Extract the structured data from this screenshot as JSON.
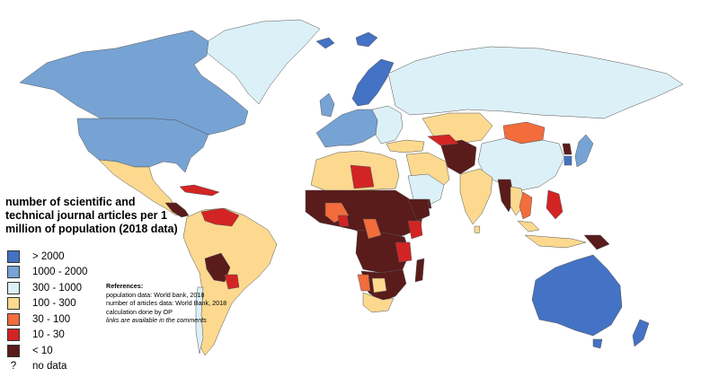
{
  "legend": {
    "title": "number of scientific and technical journal articles per 1 million of population (2018 data)",
    "classes": [
      {
        "label": "> 2000",
        "color": "#4472c4"
      },
      {
        "label": "1000 - 2000",
        "color": "#76a3d4"
      },
      {
        "label": "300 - 1000",
        "color": "#dcf0f7"
      },
      {
        "label": "100 - 300",
        "color": "#fcd98f"
      },
      {
        "label": "30 - 100",
        "color": "#f26c3c"
      },
      {
        "label": "10 - 30",
        "color": "#d32424"
      },
      {
        "label": "< 10",
        "color": "#5a1b1b"
      }
    ],
    "no_data_symbol": "?",
    "no_data_label": "no data"
  },
  "references": {
    "heading": "References:",
    "lines": [
      "population data: World bank, 2018",
      "number of articles data: World Bank, 2018",
      "calculation done by OP"
    ],
    "note": "links are available in the comments"
  }
}
